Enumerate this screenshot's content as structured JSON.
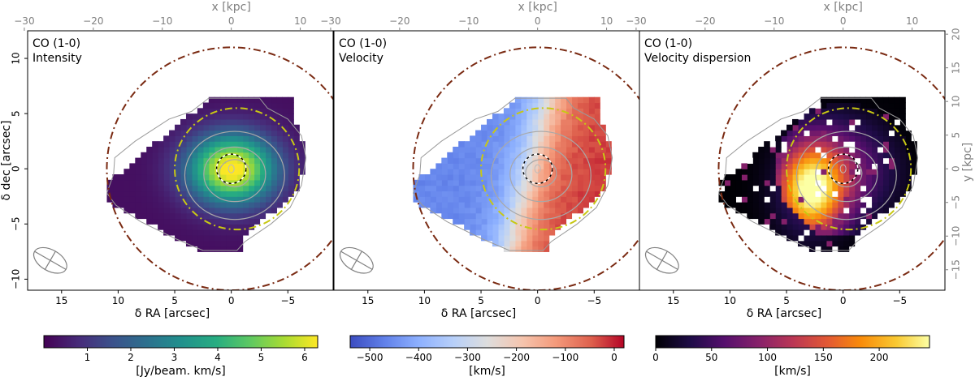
{
  "chart_data": {
    "type": "heatmap",
    "top_axis": {
      "label": "x [kpc]",
      "ticks": [
        -30,
        -20,
        -10,
        0,
        10
      ]
    },
    "right_axis": {
      "label": "y [kpc]",
      "ticks": [
        20,
        15,
        10,
        5,
        0,
        -5,
        -10,
        -15
      ]
    },
    "xlabel": "δ RA [arcsec]",
    "ylabel": "δ dec [arcsec]",
    "x_ticks": [
      15,
      10,
      5,
      0,
      -5
    ],
    "y_ticks": [
      10,
      5,
      0,
      -5,
      -10
    ],
    "xlim": [
      18,
      -9
    ],
    "ylim": [
      -11,
      12.5
    ],
    "kpc_per_arcsec": 1.64,
    "circles": [
      {
        "name": "outer",
        "center": [
          0,
          0
        ],
        "radius_arcsec": 11,
        "color": "#7a2a12"
      },
      {
        "name": "inner",
        "center": [
          -0.5,
          0
        ],
        "radius_arcsec": 5.5,
        "color": "#c8c814"
      }
    ],
    "core_circle": {
      "center": [
        0,
        0
      ],
      "radius_arcsec": 1.3
    },
    "contour_levels": [
      1.3,
      2.6,
      4.2
    ],
    "panels": [
      {
        "title_line1": "CO (1-0)",
        "title_line2": "Intensity",
        "colormap": "viridis",
        "cbar_range": [
          0,
          6.3
        ],
        "cbar_ticks": [
          1,
          2,
          3,
          4,
          5,
          6
        ],
        "cbar_label": "[Jy/beam. km/s]",
        "peak": 6.3,
        "scale_arcsec": 3.2
      },
      {
        "title_line1": "CO (1-0)",
        "title_line2": "Velocity",
        "colormap": "coolwarm",
        "cbar_range": [
          -540,
          20
        ],
        "cbar_ticks": [
          -500,
          -400,
          -300,
          -200,
          -100,
          0
        ],
        "cbar_label": "[km/s]",
        "center_velocity": -240,
        "velocity_amplitude": 220
      },
      {
        "title_line1": "CO (1-0)",
        "title_line2": "Velocity dispersion",
        "colormap": "inferno",
        "cbar_range": [
          0,
          245
        ],
        "cbar_ticks": [
          0,
          50,
          100,
          150,
          200
        ],
        "cbar_label": "[km/s]",
        "peak_position": [
          3,
          -2
        ],
        "peak_dispersion": 230
      }
    ],
    "beam": {
      "major_arcsec": 3.2,
      "minor_arcsec": 1.9,
      "position_angle_deg": 30,
      "position": [
        16,
        -8.3
      ]
    }
  }
}
